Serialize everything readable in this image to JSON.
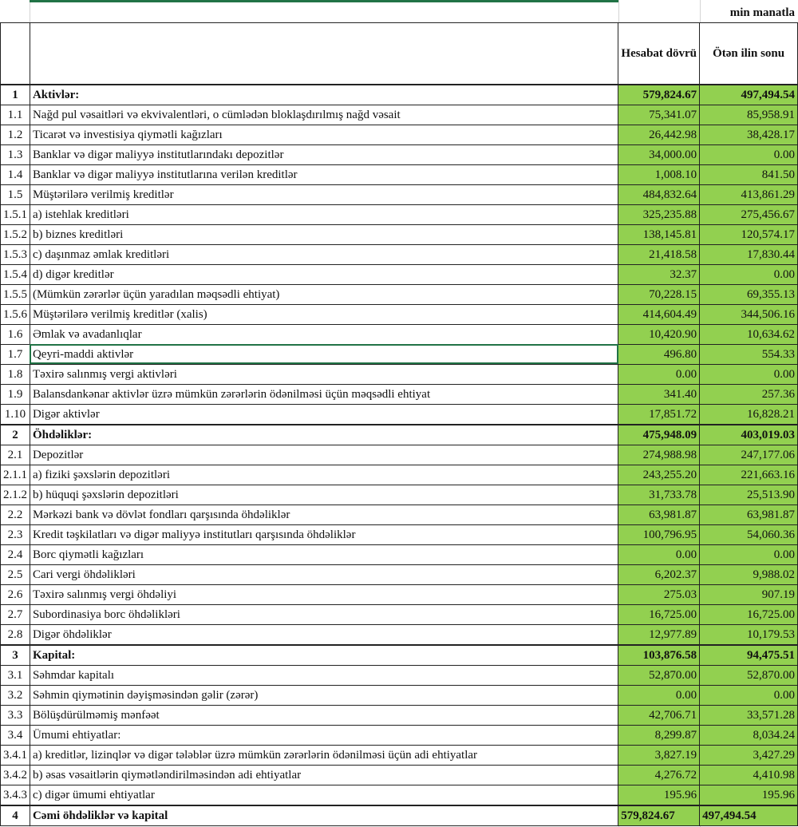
{
  "unit_label": "min manatla",
  "columns": {
    "current": "Hesabat dövrü",
    "previous": "Ötən ilin sonu"
  },
  "accent_color": "#92d050",
  "rows": [
    {
      "no": "1",
      "label": "Aktivlər:",
      "current": "579,824.67",
      "previous": "497,494.54",
      "bold": true
    },
    {
      "no": "1.1",
      "label": "Nağd pul vəsaitləri və  ekvivalentləri, o cümlədən bloklaşdırılmış nağd vəsait",
      "current": "75,341.07",
      "previous": "85,958.91"
    },
    {
      "no": "1.2",
      "label": "Ticarət və investisiya qiymətli kağızları",
      "current": "26,442.98",
      "previous": "38,428.17"
    },
    {
      "no": "1.3",
      "label": "Banklar və digər maliyyə institutlarındakı depozitlər",
      "current": "34,000.00",
      "previous": "0.00"
    },
    {
      "no": "1.4",
      "label": "Banklar və digər maliyyə institutlarına verilən kreditlər",
      "current": "1,008.10",
      "previous": "841.50"
    },
    {
      "no": "1.5",
      "label": "Müştərilərə verilmiş kreditlər",
      "current": "484,832.64",
      "previous": "413,861.29"
    },
    {
      "no": "1.5.1",
      "label": "a) istehlak kreditləri",
      "current": "325,235.88",
      "previous": "275,456.67"
    },
    {
      "no": "1.5.2",
      "label": "b) biznes kreditləri",
      "current": "138,145.81",
      "previous": "120,574.17"
    },
    {
      "no": "1.5.3",
      "label": "c) daşınmaz əmlak kreditləri",
      "current": "21,418.58",
      "previous": "17,830.44"
    },
    {
      "no": "1.5.4",
      "label": "d) digər kreditlər",
      "current": "32.37",
      "previous": "0.00"
    },
    {
      "no": "1.5.5",
      "label": "(Mümkün zərərlər üçün yaradılan məqsədli ehtiyat)",
      "current": "70,228.15",
      "previous": "69,355.13"
    },
    {
      "no": "1.5.6",
      "label": "Müştərilərə verilmiş kreditlər (xalis)",
      "current": "414,604.49",
      "previous": "344,506.16"
    },
    {
      "no": "1.6",
      "label": "Əmlak və avadanlıqlar",
      "current": "10,420.90",
      "previous": "10,634.62"
    },
    {
      "no": "1.7",
      "label": "Qeyri-maddi aktivlər",
      "current": "496.80",
      "previous": "554.33",
      "selected": true
    },
    {
      "no": "1.8",
      "label": "Təxirə salınmış vergi aktivləri",
      "current": "0.00",
      "previous": "0.00"
    },
    {
      "no": "1.9",
      "label": "Balansdankənar aktivlər üzrə mümkün zərərlərin ödənilməsi üçün məqsədli ehtiyat",
      "current": "341.40",
      "previous": "257.36"
    },
    {
      "no": "1.10",
      "label": "Digər aktivlər",
      "current": "17,851.72",
      "previous": "16,828.21"
    },
    {
      "no": "2",
      "label": "Öhdəliklər:",
      "current": "475,948.09",
      "previous": "403,019.03",
      "bold": true
    },
    {
      "no": "2.1",
      "label": "Depozitlər",
      "current": "274,988.98",
      "previous": "247,177.06"
    },
    {
      "no": "2.1.1",
      "label": "a) fiziki şəxslərin depozitləri",
      "current": "243,255.20",
      "previous": "221,663.16"
    },
    {
      "no": "2.1.2",
      "label": "b) hüquqi şəxslərin depozitləri",
      "current": "31,733.78",
      "previous": "25,513.90"
    },
    {
      "no": "2.2",
      "label": "Mərkəzi bank və dövlət fondları qarşısında öhdəliklər",
      "current": "63,981.87",
      "previous": "63,981.87"
    },
    {
      "no": "2.3",
      "label": "Kredit təşkilatları və digər maliyyə institutları qarşısında öhdəliklər",
      "current": "100,796.95",
      "previous": "54,060.36"
    },
    {
      "no": "2.4",
      "label": "Borc qiymətli kağızları",
      "current": "0.00",
      "previous": "0.00"
    },
    {
      "no": "2.5",
      "label": "Cari vergi öhdəlikləri",
      "current": "6,202.37",
      "previous": "9,988.02"
    },
    {
      "no": "2.6",
      "label": "Təxirə salınmış vergi öhdəliyi",
      "current": "275.03",
      "previous": "907.19"
    },
    {
      "no": "2.7",
      "label": "Subordinasiya borc öhdəlikləri",
      "current": "16,725.00",
      "previous": "16,725.00"
    },
    {
      "no": "2.8",
      "label": "Digər öhdəliklər",
      "current": "12,977.89",
      "previous": "10,179.53"
    },
    {
      "no": "3",
      "label": "Kapital:",
      "current": "103,876.58",
      "previous": "94,475.51",
      "bold": true
    },
    {
      "no": "3.1",
      "label": "Səhmdar kapitalı",
      "current": "52,870.00",
      "previous": "52,870.00"
    },
    {
      "no": "3.2",
      "label": "Səhmin qiymətinin dəyişməsindən gəlir (zərər)",
      "current": "0.00",
      "previous": "0.00"
    },
    {
      "no": "3.3",
      "label": "Bölüşdürülməmiş mənfəət",
      "current": "42,706.71",
      "previous": "33,571.28"
    },
    {
      "no": "3.4",
      "label": "Ümumi ehtiyatlar:",
      "current": "8,299.87",
      "previous": "8,034.24"
    },
    {
      "no": "3.4.1",
      "label": "a) kreditlər, lizinqlər və digər tələblər üzrə mümkün zərərlərin ödənilməsi üçün adi ehtiyatlar",
      "current": "3,827.19",
      "previous": "3,427.29"
    },
    {
      "no": "3.4.2",
      "label": "b) əsas vəsaitlərin qiymətləndirilməsindən adi ehtiyatlar",
      "current": "4,276.72",
      "previous": "4,410.98"
    },
    {
      "no": "3.4.3",
      "label": "c) digər ümumi ehtiyatlar",
      "current": "195.96",
      "previous": "195.96"
    },
    {
      "no": "4",
      "label": "Cəmi öhdəliklər və kapital",
      "current": "579,824.67",
      "previous": "497,494.54",
      "bold": true,
      "total": true
    }
  ]
}
